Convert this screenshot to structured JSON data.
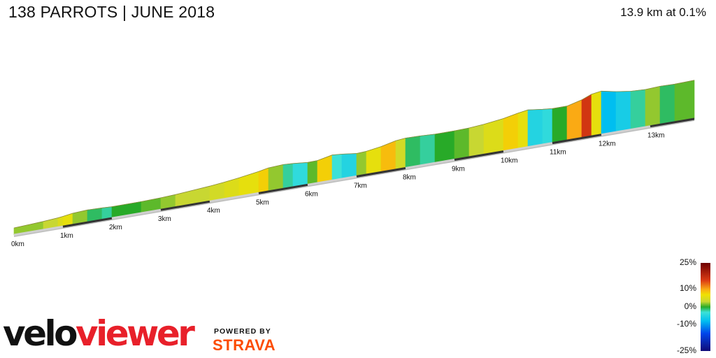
{
  "header": {
    "title": "138 PARROTS | JUNE 2018",
    "summary": "13.9 km at 0.1%"
  },
  "chart_data": {
    "type": "area",
    "title": "138 PARROTS | JUNE 2018",
    "subtitle": "13.9 km at 0.1%",
    "xlabel": "",
    "ylabel": "",
    "total_distance_km": 13.9,
    "x_ticks": [
      "0km",
      "1km",
      "2km",
      "3km",
      "4km",
      "5km",
      "6km",
      "7km",
      "8km",
      "9km",
      "10km",
      "11km",
      "12km",
      "13km"
    ],
    "x_tick_values": [
      0,
      1,
      2,
      3,
      4,
      5,
      6,
      7,
      8,
      9,
      10,
      11,
      12,
      13
    ],
    "series": [
      {
        "distance_km": [
          0.0,
          0.3,
          0.6,
          0.9,
          1.0,
          1.2,
          1.5,
          1.8,
          2.0,
          2.3,
          2.6,
          3.0,
          3.3,
          3.6,
          4.0,
          4.3,
          4.6,
          5.0,
          5.2,
          5.5,
          5.7,
          6.0,
          6.2,
          6.5,
          6.7,
          7.0,
          7.2,
          7.5,
          7.8,
          8.0,
          8.3,
          8.6,
          9.0,
          9.3,
          9.6,
          10.0,
          10.3,
          10.5,
          10.8,
          11.0,
          11.3,
          11.6,
          11.8,
          12.0,
          12.3,
          12.6,
          12.9,
          13.2,
          13.5,
          13.9
        ],
        "gradient_pct": [
          3,
          2,
          2,
          3,
          5,
          6,
          2,
          -1,
          -2,
          0,
          0,
          1,
          2,
          3,
          3,
          4,
          5,
          6,
          8,
          2,
          -2,
          -4,
          1,
          8,
          -3,
          -5,
          2,
          6,
          9,
          4,
          -1,
          -2,
          0,
          1,
          3,
          5,
          8,
          6,
          -5,
          -4,
          0,
          10,
          16,
          6,
          -8,
          -6,
          -2,
          2,
          -1,
          1
        ]
      }
    ],
    "legend": {
      "position": "bottom-right",
      "ticks": [
        "25%",
        "10%",
        "0%",
        "-10%",
        "-25%"
      ],
      "tick_values": [
        25,
        10,
        0,
        -10,
        -25
      ]
    }
  },
  "brand": {
    "logo_part1": "velo",
    "logo_part2": "viewer",
    "powered_by": "POWERED BY",
    "partner": "STRAVA"
  },
  "colors": {
    "title_text": "#111111",
    "logo_red": "#e8202a",
    "strava_orange": "#fc4c02"
  }
}
